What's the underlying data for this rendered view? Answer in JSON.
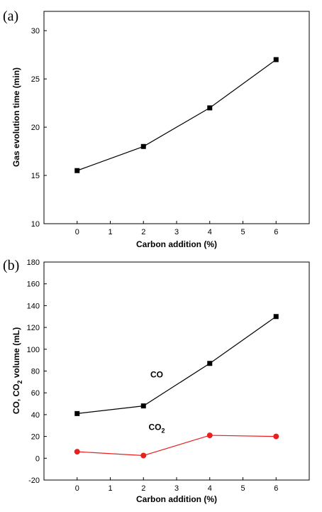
{
  "chart_data": [
    {
      "type": "line",
      "panel_label": "(a)",
      "xlabel": "Carbon addition (%)",
      "ylabel": "Gas evolution time (min)",
      "xlim": [
        -1,
        7
      ],
      "ylim": [
        10,
        32
      ],
      "xticks": [
        0,
        1,
        2,
        3,
        4,
        5,
        6
      ],
      "yticks": [
        10,
        15,
        20,
        25,
        30
      ],
      "grid": false,
      "series": [
        {
          "x": [
            0,
            2,
            4,
            6
          ],
          "values": [
            15.5,
            18,
            22,
            27
          ],
          "color": "#000000",
          "marker": "square"
        }
      ]
    },
    {
      "type": "line",
      "panel_label": "(b)",
      "xlabel": "Carbon addition (%)",
      "ylabel_main": "CO, CO",
      "ylabel_sub": "2",
      "ylabel_rest": " volume (mL)",
      "xlim": [
        -1,
        7
      ],
      "ylim": [
        -20,
        180
      ],
      "xticks": [
        0,
        1,
        2,
        3,
        4,
        5,
        6
      ],
      "yticks": [
        -20,
        0,
        20,
        40,
        60,
        80,
        100,
        120,
        140,
        160,
        180
      ],
      "grid": false,
      "series": [
        {
          "name": "CO",
          "x": [
            0,
            2,
            4,
            6
          ],
          "values": [
            41,
            48,
            87,
            130
          ],
          "color": "#000000",
          "marker": "square",
          "label_at": [
            2.4,
            74
          ]
        },
        {
          "name": "CO",
          "name_sub": "2",
          "x": [
            0,
            2,
            4,
            6
          ],
          "values": [
            6,
            2.5,
            21,
            20
          ],
          "color": "#e8201e",
          "marker": "circle",
          "label_at": [
            2.4,
            26
          ]
        }
      ]
    }
  ]
}
